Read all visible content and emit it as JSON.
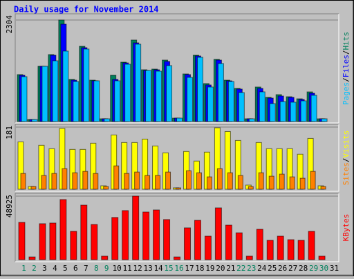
{
  "chart_data": [
    {
      "type": "bar",
      "title": "Daily usage for November 2014",
      "ylim": [
        0,
        2304
      ],
      "yticks": [
        2304
      ],
      "legend_separator": "/",
      "series": [
        {
          "name": "Hits",
          "color": "#00805c",
          "values": [
            1066,
            47,
            1254,
            1520,
            2304,
            956,
            1708,
            940,
            63,
            1050,
            1348,
            1850,
            1176,
            1191,
            1395,
            78,
            1081,
            1505,
            862,
            1411,
            940,
            752,
            63,
            784,
            549,
            611,
            564,
            517,
            674,
            63,
            0
          ]
        },
        {
          "name": "Files",
          "color": "#0000ff",
          "values": [
            1050,
            47,
            1254,
            1505,
            2210,
            940,
            1677,
            925,
            63,
            956,
            1332,
            1787,
            1160,
            1176,
            1364,
            78,
            1066,
            1489,
            831,
            1395,
            925,
            737,
            63,
            752,
            533,
            580,
            549,
            502,
            643,
            63,
            0
          ]
        },
        {
          "name": "Pages",
          "color": "#00c0ff",
          "values": [
            1019,
            47,
            1254,
            1379,
            1599,
            909,
            1646,
            925,
            63,
            925,
            1301,
            1756,
            1160,
            1144,
            1270,
            78,
            1003,
            1458,
            784,
            1317,
            909,
            658,
            63,
            674,
            408,
            454,
            439,
            470,
            596,
            63,
            0
          ]
        }
      ]
    },
    {
      "type": "bar",
      "ylim": [
        0,
        181
      ],
      "yticks": [
        181
      ],
      "legend_separator": "/",
      "series": [
        {
          "name": "Visits",
          "color": "#ffff00",
          "values": [
            138,
            8,
            128,
            118,
            177,
            116,
            116,
            134,
            10,
            158,
            136,
            136,
            146,
            126,
            106,
            4,
            110,
            82,
            108,
            179,
            168,
            142,
            12,
            136,
            118,
            118,
            118,
            102,
            148,
            10,
            0
          ]
        },
        {
          "name": "Sites",
          "color": "#ff8000",
          "values": [
            46,
            8,
            40,
            46,
            60,
            48,
            52,
            46,
            8,
            68,
            46,
            50,
            40,
            40,
            50,
            4,
            54,
            48,
            36,
            60,
            48,
            40,
            8,
            48,
            38,
            44,
            36,
            32,
            52,
            8,
            0
          ]
        }
      ]
    },
    {
      "type": "bar",
      "ylim": [
        0,
        48925
      ],
      "yticks": [
        48925
      ],
      "categories": [
        "1",
        "2",
        "3",
        "4",
        "5",
        "6",
        "7",
        "8",
        "9",
        "10",
        "11",
        "12",
        "13",
        "14",
        "15",
        "16",
        "17",
        "18",
        "19",
        "20",
        "21",
        "22",
        "23",
        "24",
        "25",
        "26",
        "27",
        "28",
        "29",
        "30",
        "31"
      ],
      "category_colors": [
        "#00805c",
        "#00805c",
        "#000000",
        "#000000",
        "#000000",
        "#000000",
        "#000000",
        "#00805c",
        "#00805c",
        "#000000",
        "#000000",
        "#000000",
        "#000000",
        "#000000",
        "#00805c",
        "#00805c",
        "#000000",
        "#000000",
        "#000000",
        "#000000",
        "#000000",
        "#00805c",
        "#00805c",
        "#000000",
        "#000000",
        "#000000",
        "#000000",
        "#000000",
        "#00805c",
        "#00805c",
        "#000000"
      ],
      "series": [
        {
          "name": "KBytes",
          "color": "#ff0000",
          "values": [
            28700,
            2100,
            27700,
            28200,
            46300,
            21800,
            42000,
            27100,
            2700,
            32500,
            37800,
            48925,
            36700,
            38300,
            30900,
            2100,
            24500,
            30300,
            18100,
            39900,
            26600,
            20700,
            2700,
            23400,
            14900,
            18100,
            15400,
            14900,
            21800,
            2700,
            0
          ]
        }
      ]
    }
  ]
}
